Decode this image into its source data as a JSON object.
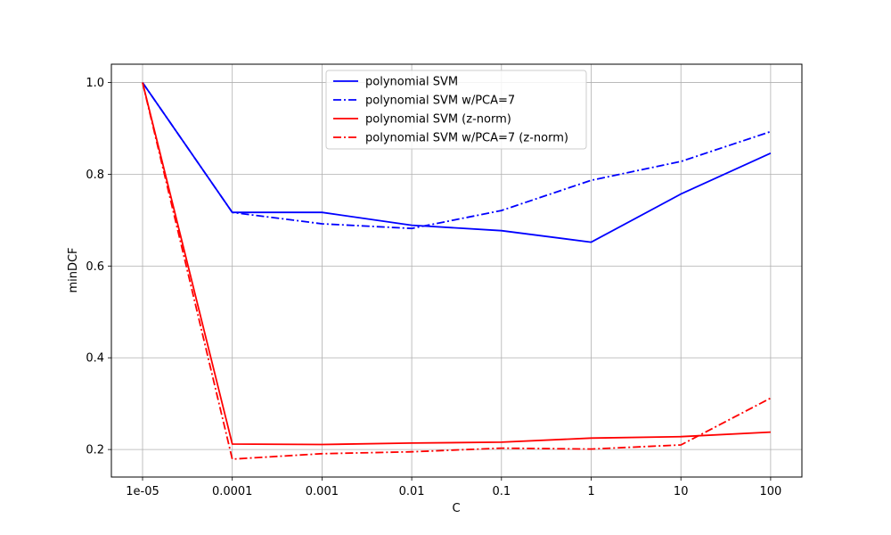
{
  "chart_data": {
    "type": "line",
    "title": "",
    "xlabel": "C",
    "ylabel": "minDCF",
    "categories": [
      "1e-05",
      "0.0001",
      "0.001",
      "0.01",
      "0.1",
      "1",
      "10",
      "100"
    ],
    "yticks": [
      "0.2",
      "0.4",
      "0.6",
      "0.8",
      "1.0"
    ],
    "ylim": [
      0.14,
      1.04
    ],
    "grid": true,
    "legend_position": "top-center",
    "series": [
      {
        "name": "polynomial SVM",
        "color": "#0000ff",
        "style": "solid",
        "values": [
          1.0,
          0.717,
          0.717,
          0.689,
          0.677,
          0.652,
          0.757,
          0.846
        ]
      },
      {
        "name": "polynomial SVM w/PCA=7",
        "color": "#0000ff",
        "style": "dashdot",
        "values": [
          1.0,
          0.717,
          0.692,
          0.682,
          0.721,
          0.787,
          0.828,
          0.893
        ]
      },
      {
        "name": "polynomial SVM (z-norm)",
        "color": "#ff0000",
        "style": "solid",
        "values": [
          1.0,
          0.212,
          0.211,
          0.214,
          0.216,
          0.225,
          0.228,
          0.238
        ]
      },
      {
        "name": "polynomial SVM w/PCA=7 (z-norm)",
        "color": "#ff0000",
        "style": "dashdot",
        "values": [
          1.0,
          0.179,
          0.191,
          0.195,
          0.203,
          0.201,
          0.21,
          0.312
        ]
      }
    ]
  }
}
